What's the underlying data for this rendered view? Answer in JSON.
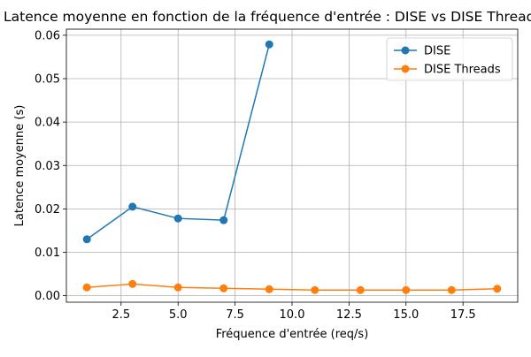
{
  "chart_data": {
    "type": "line",
    "title": "Latence moyenne en fonction de la fréquence d'entrée : DISE vs DISE Threads",
    "xlabel": "Fréquence d'entrée (req/s)",
    "ylabel": "Latence moyenne (s)",
    "xlim": [
      0.1,
      19.9
    ],
    "ylim": [
      -0.0015,
      0.0614
    ],
    "xticks": [
      2.5,
      5.0,
      7.5,
      10.0,
      12.5,
      15.0,
      17.5
    ],
    "xtick_labels": [
      "2.5",
      "5.0",
      "7.5",
      "10.0",
      "12.5",
      "15.0",
      "17.5"
    ],
    "yticks": [
      0.0,
      0.01,
      0.02,
      0.03,
      0.04,
      0.05,
      0.06
    ],
    "ytick_labels": [
      "0.00",
      "0.01",
      "0.02",
      "0.03",
      "0.04",
      "0.05",
      "0.06"
    ],
    "grid": true,
    "legend_position": "top-right",
    "series": [
      {
        "name": "DISE",
        "color": "#1f77b4",
        "marker": "circle",
        "x": [
          1,
          3,
          5,
          7,
          9
        ],
        "y": [
          0.013,
          0.0205,
          0.0178,
          0.0174,
          0.0579
        ]
      },
      {
        "name": "DISE Threads",
        "color": "#ff7f0e",
        "marker": "circle",
        "x": [
          1,
          3,
          5,
          7,
          9,
          11,
          13,
          15,
          17,
          19
        ],
        "y": [
          0.0019,
          0.0027,
          0.0019,
          0.0017,
          0.0015,
          0.0013,
          0.0013,
          0.0013,
          0.0013,
          0.0016
        ]
      }
    ]
  }
}
